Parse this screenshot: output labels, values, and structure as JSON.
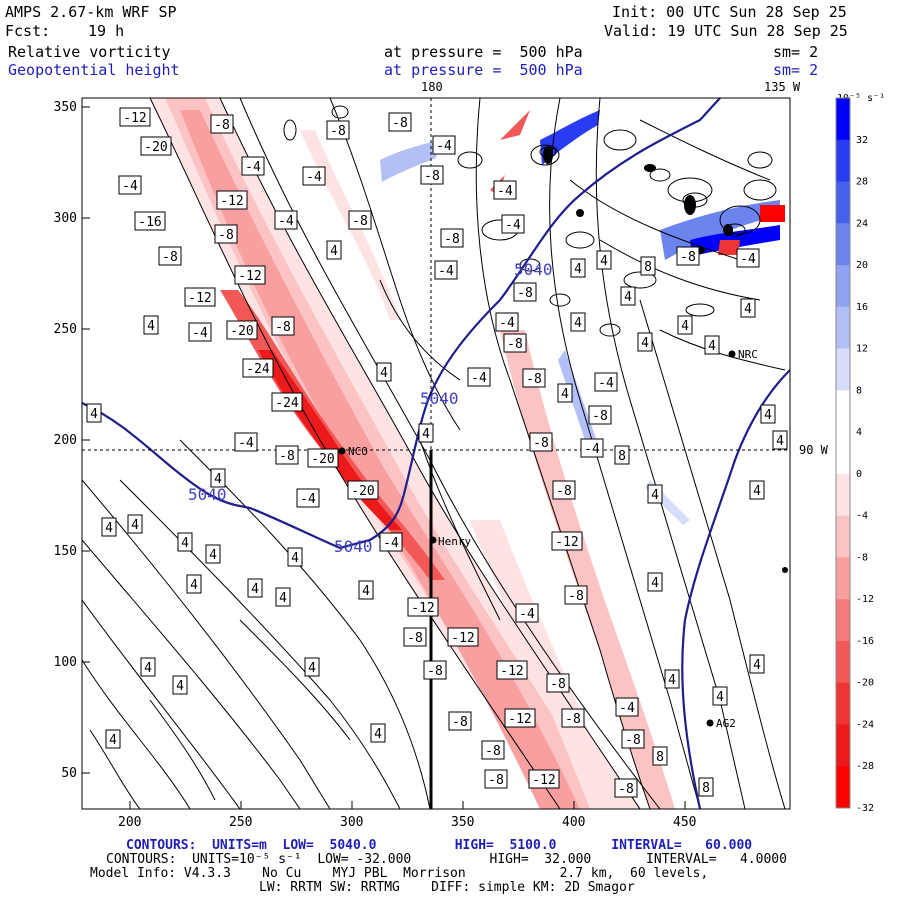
{
  "header": {
    "model": "AMPS 2.67-km WRF SP",
    "init": "Init: 00 UTC Sun 28 Sep 25",
    "fcst_label": "Fcst:",
    "fcst_value": "19 h",
    "valid": "Valid: 19 UTC Sun 28 Sep 25",
    "field1": "Relative vorticity",
    "field1_level": "at pressure =  500 hPa",
    "field1_sm": "sm= 2",
    "field2": "Geopotential height",
    "field2_level": "at pressure =  500 hPa",
    "field2_sm": "sm= 2"
  },
  "map": {
    "meridian_180": "180",
    "meridian_135w": "135 W",
    "meridian_90w": "90 W",
    "x_ticks": [
      "200",
      "250",
      "300",
      "350",
      "400",
      "450"
    ],
    "y_ticks": [
      "350",
      "300",
      "250",
      "200",
      "150",
      "100",
      "50"
    ],
    "stations": [
      "NCO",
      "Henry",
      "NRC",
      "AG2"
    ],
    "height_label": "5040"
  },
  "colorbar": {
    "units": "10⁻⁵ s⁻¹",
    "labels": [
      "32",
      "28",
      "24",
      "20",
      "16",
      "12",
      "8",
      "4",
      "0",
      "-4",
      "-8",
      "-12",
      "-16",
      "-20",
      "-24",
      "-28",
      "-32"
    ],
    "colors": [
      "#0000ff",
      "#2a3cf2",
      "#4660ea",
      "#6b84ee",
      "#8fa3f2",
      "#b3c0f6",
      "#d6dcfa",
      "#ffffff",
      "#ffffff",
      "#fde3e3",
      "#fbc3c3",
      "#f8a0a0",
      "#f57c7c",
      "#f25858",
      "#ef3434",
      "#ec1a1a",
      "#ff0000"
    ]
  },
  "footer": {
    "line1": "CONTOURS:  UNITS=m  LOW=  5040.0          HIGH=  5100.0       INTERVAL=   60.000",
    "line2": "CONTOURS:  UNITS=10⁻⁵ s⁻¹  LOW= -32.000          HIGH=  32.000       INTERVAL=   4.0000",
    "line3": "Model Info: V4.3.3    No Cu    MYJ PBL  Morrison            2.7 km,  60 levels,",
    "line4": "LW: RRTM SW: RRTMG    DIFF: simple KM: 2D Smagor"
  },
  "vort_labels": [
    {
      "t": "-12",
      "x": 135,
      "y": 117
    },
    {
      "t": "-8",
      "x": 222,
      "y": 124
    },
    {
      "t": "-8",
      "x": 338,
      "y": 130
    },
    {
      "t": "-8",
      "x": 400,
      "y": 122
    },
    {
      "t": "-20",
      "x": 156,
      "y": 146
    },
    {
      "t": "-4",
      "x": 253,
      "y": 166
    },
    {
      "t": "-4",
      "x": 314,
      "y": 176
    },
    {
      "t": "-4",
      "x": 444,
      "y": 145
    },
    {
      "t": "-8",
      "x": 432,
      "y": 175
    },
    {
      "t": "-4",
      "x": 130,
      "y": 185
    },
    {
      "t": "-12",
      "x": 232,
      "y": 200
    },
    {
      "t": "-4",
      "x": 505,
      "y": 190
    },
    {
      "t": "-16",
      "x": 150,
      "y": 221
    },
    {
      "t": "-4",
      "x": 286,
      "y": 220
    },
    {
      "t": "-8",
      "x": 360,
      "y": 220
    },
    {
      "t": "-8",
      "x": 226,
      "y": 234
    },
    {
      "t": "4",
      "x": 334,
      "y": 250
    },
    {
      "t": "-8",
      "x": 452,
      "y": 238
    },
    {
      "t": "-4",
      "x": 513,
      "y": 224
    },
    {
      "t": "-8",
      "x": 170,
      "y": 256
    },
    {
      "t": "-12",
      "x": 250,
      "y": 275
    },
    {
      "t": "-4",
      "x": 446,
      "y": 270
    },
    {
      "t": "4",
      "x": 578,
      "y": 268
    },
    {
      "t": "4",
      "x": 604,
      "y": 260
    },
    {
      "t": "8",
      "x": 648,
      "y": 266
    },
    {
      "t": "-8",
      "x": 688,
      "y": 256
    },
    {
      "t": "-4",
      "x": 748,
      "y": 258
    },
    {
      "t": "-12",
      "x": 200,
      "y": 297
    },
    {
      "t": "-8",
      "x": 525,
      "y": 292
    },
    {
      "t": "4",
      "x": 628,
      "y": 296
    },
    {
      "t": "4",
      "x": 151,
      "y": 325
    },
    {
      "t": "-4",
      "x": 200,
      "y": 332
    },
    {
      "t": "-20",
      "x": 242,
      "y": 330
    },
    {
      "t": "-8",
      "x": 283,
      "y": 326
    },
    {
      "t": "-4",
      "x": 507,
      "y": 322
    },
    {
      "t": "4",
      "x": 578,
      "y": 322
    },
    {
      "t": "4",
      "x": 685,
      "y": 325
    },
    {
      "t": "4",
      "x": 748,
      "y": 308
    },
    {
      "t": "-8",
      "x": 515,
      "y": 343
    },
    {
      "t": "4",
      "x": 645,
      "y": 342
    },
    {
      "t": "4",
      "x": 712,
      "y": 345
    },
    {
      "t": "-24",
      "x": 258,
      "y": 368
    },
    {
      "t": "4",
      "x": 384,
      "y": 372
    },
    {
      "t": "-4",
      "x": 479,
      "y": 377
    },
    {
      "t": "-8",
      "x": 534,
      "y": 378
    },
    {
      "t": "-4",
      "x": 606,
      "y": 382
    },
    {
      "t": "-24",
      "x": 287,
      "y": 402
    },
    {
      "t": "4",
      "x": 565,
      "y": 393
    },
    {
      "t": "4",
      "x": 94,
      "y": 413
    },
    {
      "t": "-8",
      "x": 600,
      "y": 415
    },
    {
      "t": "4",
      "x": 768,
      "y": 414
    },
    {
      "t": "-4",
      "x": 246,
      "y": 442
    },
    {
      "t": "4",
      "x": 426,
      "y": 433
    },
    {
      "t": "-8",
      "x": 541,
      "y": 442
    },
    {
      "t": "-4",
      "x": 592,
      "y": 448
    },
    {
      "t": "8",
      "x": 622,
      "y": 455
    },
    {
      "t": "4",
      "x": 780,
      "y": 440
    },
    {
      "t": "-8",
      "x": 287,
      "y": 455
    },
    {
      "t": "-20",
      "x": 323,
      "y": 458
    },
    {
      "t": "4",
      "x": 218,
      "y": 478
    },
    {
      "t": "-20",
      "x": 363,
      "y": 490
    },
    {
      "t": "-8",
      "x": 564,
      "y": 490
    },
    {
      "t": "4",
      "x": 655,
      "y": 494
    },
    {
      "t": "-4",
      "x": 308,
      "y": 498
    },
    {
      "t": "4",
      "x": 757,
      "y": 490
    },
    {
      "t": "4",
      "x": 109,
      "y": 527
    },
    {
      "t": "4",
      "x": 135,
      "y": 524
    },
    {
      "t": "4",
      "x": 185,
      "y": 542
    },
    {
      "t": "-4",
      "x": 391,
      "y": 542
    },
    {
      "t": "-12",
      "x": 567,
      "y": 541
    },
    {
      "t": "4",
      "x": 213,
      "y": 554
    },
    {
      "t": "4",
      "x": 295,
      "y": 557
    },
    {
      "t": "4",
      "x": 194,
      "y": 584
    },
    {
      "t": "4",
      "x": 255,
      "y": 588
    },
    {
      "t": "4",
      "x": 283,
      "y": 597
    },
    {
      "t": "-8",
      "x": 576,
      "y": 595
    },
    {
      "t": "4",
      "x": 655,
      "y": 582
    },
    {
      "t": "4",
      "x": 366,
      "y": 590
    },
    {
      "t": "-12",
      "x": 423,
      "y": 607
    },
    {
      "t": "-4",
      "x": 527,
      "y": 613
    },
    {
      "t": "-8",
      "x": 415,
      "y": 637
    },
    {
      "t": "-12",
      "x": 463,
      "y": 637
    },
    {
      "t": "4",
      "x": 312,
      "y": 667
    },
    {
      "t": "-8",
      "x": 435,
      "y": 670
    },
    {
      "t": "-12",
      "x": 512,
      "y": 670
    },
    {
      "t": "4",
      "x": 148,
      "y": 667
    },
    {
      "t": "4",
      "x": 180,
      "y": 685
    },
    {
      "t": "4",
      "x": 672,
      "y": 679
    },
    {
      "t": "4",
      "x": 757,
      "y": 664
    },
    {
      "t": "-8",
      "x": 558,
      "y": 683
    },
    {
      "t": "4",
      "x": 720,
      "y": 696
    },
    {
      "t": "-4",
      "x": 627,
      "y": 707
    },
    {
      "t": "-12",
      "x": 520,
      "y": 718
    },
    {
      "t": "-8",
      "x": 573,
      "y": 718
    },
    {
      "t": "-8",
      "x": 460,
      "y": 721
    },
    {
      "t": "4",
      "x": 378,
      "y": 733
    },
    {
      "t": "-8",
      "x": 633,
      "y": 739
    },
    {
      "t": "4",
      "x": 113,
      "y": 739
    },
    {
      "t": "-8",
      "x": 493,
      "y": 750
    },
    {
      "t": "8",
      "x": 660,
      "y": 756
    },
    {
      "t": "-8",
      "x": 496,
      "y": 779
    },
    {
      "t": "-12",
      "x": 544,
      "y": 779
    },
    {
      "t": "-8",
      "x": 626,
      "y": 788
    },
    {
      "t": "8",
      "x": 706,
      "y": 787
    }
  ]
}
